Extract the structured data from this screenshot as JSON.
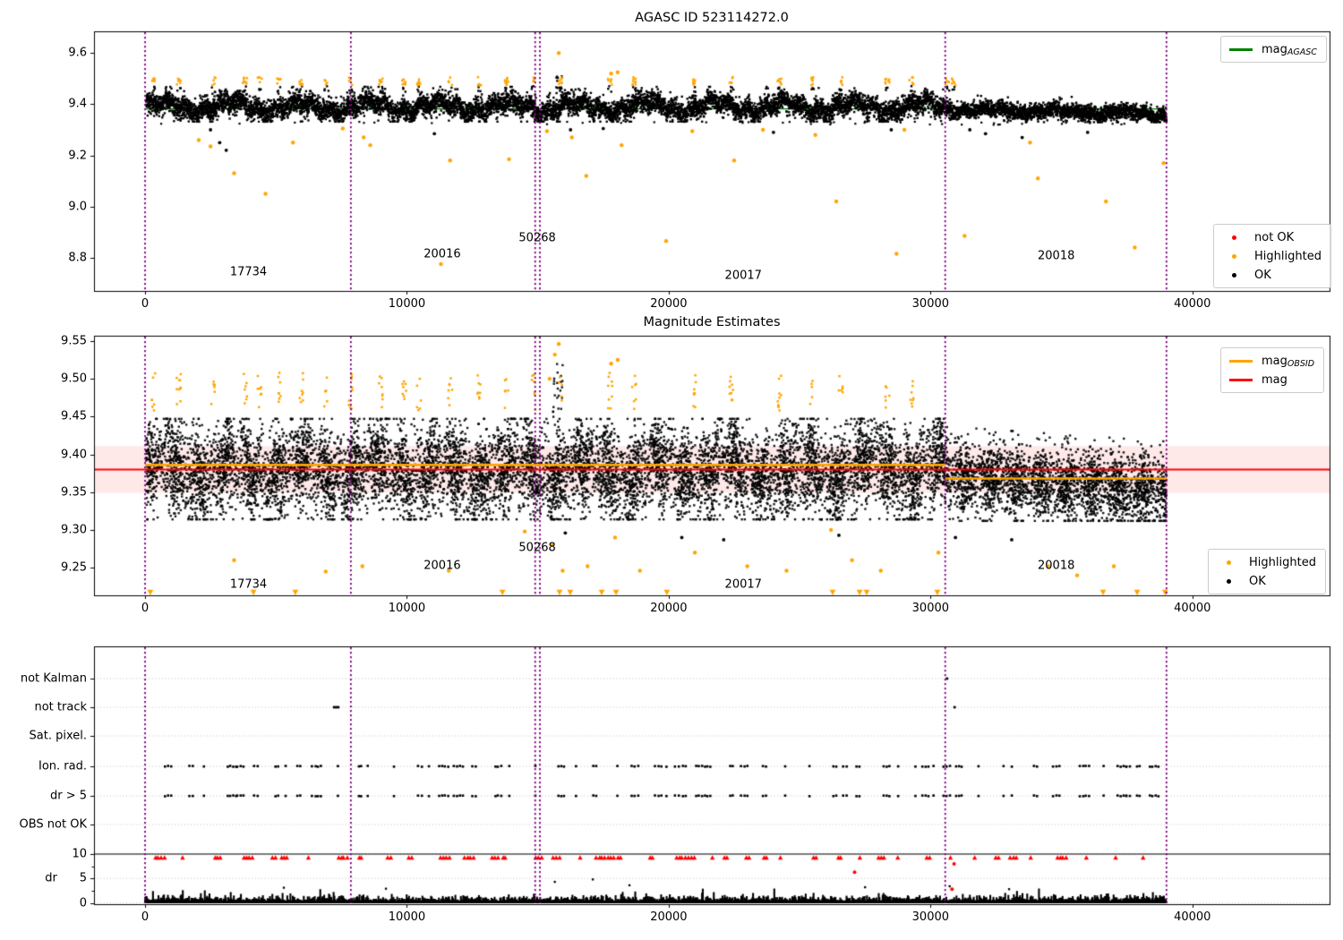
{
  "figure_title": "AGASC ID 523114272.0",
  "colors": {
    "ok": "#000000",
    "highlighted": "#ffa500",
    "not_ok": "#ff0000",
    "mag_agasc_line": "#008000",
    "mag_obsid_line": "#ffa500",
    "mag_line": "#ff0000",
    "mag_band": "rgba(255,0,0,0.09)",
    "obsid_boundary": "#800080",
    "grid": "#c0c0c0"
  },
  "chart_data": [
    {
      "type": "scatter",
      "title": "AGASC ID 523114272.0",
      "xlim": [
        -1950,
        45240
      ],
      "ylim": [
        8.67,
        9.685
      ],
      "xticks": [
        "0",
        "10000",
        "20000",
        "30000",
        "40000"
      ],
      "yticks": [
        "8.8",
        "9.0",
        "9.2",
        "9.4",
        "9.6"
      ],
      "grid": false,
      "obsid_boundaries": [
        0,
        7860,
        14900,
        15080,
        30560,
        39010
      ],
      "annotations": [
        {
          "text": "17734",
          "x": 3950,
          "y": 8.745
        },
        {
          "text": "20016",
          "x": 11350,
          "y": 8.815
        },
        {
          "text": "50268",
          "x": 14980,
          "y": 8.875
        },
        {
          "text": "20017",
          "x": 22850,
          "y": 8.73
        },
        {
          "text": "20018",
          "x": 34800,
          "y": 8.805
        }
      ],
      "mag_agasc_line": {
        "y": 9.382,
        "color": "#008000"
      },
      "series": {
        "ok_cloud": {
          "desc": "dense oscillating band of OK magnitudes",
          "x_range": [
            0,
            39010
          ],
          "mag_range": [
            9.33,
            9.47
          ],
          "center": 9.39,
          "decline_after_x": 30560,
          "decline": 0.02
        },
        "highlighted_clusters": {
          "desc": "orange clusters capping the band",
          "mag_range": [
            9.47,
            9.51
          ],
          "x_range": [
            300,
            31000
          ]
        },
        "highlighted_outliers": [
          [
            2050,
            9.26
          ],
          [
            2500,
            9.235
          ],
          [
            3400,
            9.13
          ],
          [
            4600,
            9.05
          ],
          [
            5650,
            9.25
          ],
          [
            7550,
            9.305
          ],
          [
            8350,
            9.27
          ],
          [
            8600,
            9.24
          ],
          [
            11300,
            8.775
          ],
          [
            11650,
            9.18
          ],
          [
            13900,
            9.185
          ],
          [
            15350,
            9.295
          ],
          [
            15800,
            9.6
          ],
          [
            16300,
            9.27
          ],
          [
            16850,
            9.12
          ],
          [
            17800,
            9.52
          ],
          [
            18050,
            9.525
          ],
          [
            18200,
            9.24
          ],
          [
            19900,
            8.865
          ],
          [
            20900,
            9.295
          ],
          [
            22500,
            9.18
          ],
          [
            23600,
            9.3
          ],
          [
            25600,
            9.28
          ],
          [
            26400,
            9.02
          ],
          [
            28700,
            8.815
          ],
          [
            29000,
            9.3
          ],
          [
            31300,
            8.885
          ],
          [
            33800,
            9.25
          ],
          [
            34100,
            9.11
          ],
          [
            36700,
            9.02
          ],
          [
            37800,
            8.84
          ],
          [
            38900,
            9.17
          ]
        ],
        "ok_outliers": [
          [
            2500,
            9.3
          ],
          [
            2850,
            9.25
          ],
          [
            3100,
            9.22
          ],
          [
            11050,
            9.285
          ],
          [
            16250,
            9.3
          ],
          [
            17500,
            9.305
          ],
          [
            24000,
            9.29
          ],
          [
            28500,
            9.3
          ],
          [
            31500,
            9.3
          ],
          [
            32100,
            9.285
          ],
          [
            33500,
            9.27
          ],
          [
            36000,
            9.29
          ]
        ]
      },
      "legends": [
        {
          "name": "legend-mag-agasc",
          "items": [
            {
              "type": "line",
              "color": "#008000",
              "label": "mag",
              "sub": "AGASC"
            }
          ]
        },
        {
          "name": "legend-point-types",
          "items": [
            {
              "type": "dot",
              "color": "#ff0000",
              "label": "not OK",
              "sub": ""
            },
            {
              "type": "dot",
              "color": "#ffa500",
              "label": "Highlighted",
              "sub": ""
            },
            {
              "type": "dot",
              "color": "#000000",
              "label": "OK",
              "sub": ""
            }
          ]
        }
      ]
    },
    {
      "type": "scatter",
      "title": "Magnitude Estimates",
      "xlim": [
        -1950,
        45240
      ],
      "ylim": [
        9.2135,
        9.557
      ],
      "xticks": [
        "0",
        "10000",
        "20000",
        "30000",
        "40000"
      ],
      "yticks": [
        "9.25",
        "9.30",
        "9.35",
        "9.40",
        "9.45",
        "9.50",
        "9.55"
      ],
      "grid": false,
      "obsid_boundaries": [
        0,
        7860,
        14900,
        15080,
        30560,
        39010
      ],
      "annotations": [
        {
          "text": "17734",
          "x": 3950,
          "y": 9.228
        },
        {
          "text": "20016",
          "x": 11350,
          "y": 9.252
        },
        {
          "text": "50268",
          "x": 14980,
          "y": 9.276
        },
        {
          "text": "20017",
          "x": 22850,
          "y": 9.228
        },
        {
          "text": "20018",
          "x": 34800,
          "y": 9.253
        }
      ],
      "mag_line": {
        "y": 9.38,
        "color": "#ff0000",
        "band": [
          9.349,
          9.411
        ]
      },
      "mag_obsid_segments": [
        {
          "x": [
            0,
            30560
          ],
          "y": 9.386
        },
        {
          "x": [
            30560,
            39010
          ],
          "y": 9.368
        }
      ],
      "series": {
        "ok_cloud": {
          "desc": "dense striped cloud of per-sample magnitudes",
          "x_range": [
            0,
            39010
          ],
          "mag_range": [
            9.31,
            9.45
          ],
          "center": 9.379,
          "decline_after_x": 30560,
          "decline": 0.019
        },
        "highlighted_clusters": {
          "desc": "orange clusters above cloud",
          "mag_range": [
            9.46,
            9.51
          ],
          "x_range": [
            300,
            30700
          ]
        },
        "highlighted_high": [
          [
            15800,
            9.546
          ],
          [
            15650,
            9.532
          ],
          [
            17800,
            9.52
          ],
          [
            18050,
            9.525
          ],
          [
            15450,
            9.5
          ]
        ],
        "highlighted_outliers": [
          [
            3400,
            9.26
          ],
          [
            6900,
            9.245
          ],
          [
            8300,
            9.252
          ],
          [
            11600,
            9.246
          ],
          [
            14500,
            9.298
          ],
          [
            15550,
            9.28
          ],
          [
            15950,
            9.246
          ],
          [
            16900,
            9.252
          ],
          [
            17950,
            9.29
          ],
          [
            18900,
            9.246
          ],
          [
            21000,
            9.27
          ],
          [
            23000,
            9.252
          ],
          [
            24500,
            9.246
          ],
          [
            26200,
            9.3
          ],
          [
            27000,
            9.26
          ],
          [
            28100,
            9.246
          ],
          [
            30300,
            9.27
          ],
          [
            34500,
            9.252
          ],
          [
            35600,
            9.24
          ],
          [
            37000,
            9.252
          ]
        ],
        "ok_outliers": [
          [
            16050,
            9.296
          ],
          [
            20500,
            9.29
          ],
          [
            22100,
            9.287
          ],
          [
            26500,
            9.293
          ],
          [
            30950,
            9.29
          ],
          [
            33100,
            9.287
          ]
        ],
        "clipped_below_x": [
          200,
          4140,
          5740,
          13650,
          15830,
          16240,
          17440,
          17990,
          19930,
          26260,
          27290,
          27560,
          30260,
          36590,
          37890,
          38960
        ]
      },
      "legends": [
        {
          "name": "legend-mag-lines",
          "items": [
            {
              "type": "line",
              "color": "#ffa500",
              "label": "mag",
              "sub": "OBSID"
            },
            {
              "type": "line",
              "color": "#ff0000",
              "label": "mag",
              "sub": ""
            }
          ]
        },
        {
          "name": "legend-point-types",
          "items": [
            {
              "type": "dot",
              "color": "#ffa500",
              "label": "Highlighted",
              "sub": ""
            },
            {
              "type": "dot",
              "color": "#000000",
              "label": "OK",
              "sub": ""
            }
          ]
        }
      ]
    },
    {
      "type": "flags",
      "title": "",
      "xlim": [
        -1950,
        45240
      ],
      "xticks": [
        "0",
        "10000",
        "20000",
        "30000",
        "40000"
      ],
      "rows": [
        "not Kalman",
        "not track",
        "Sat. pixel.",
        "Ion. rad.",
        "dr > 5",
        "OBS not OK"
      ],
      "dr_axis": {
        "label": "dr",
        "ticks": [
          "10",
          "5",
          "0"
        ],
        "limit_line": 10
      },
      "obsid_boundaries": [
        0,
        7860,
        14900,
        15080,
        30560,
        39010
      ],
      "flags_data": {
        "not_kalman_x": [
          30630
        ],
        "not_track_x": [
          7220,
          7300,
          7380,
          30920
        ],
        "sat_pixel_x": [],
        "obs_not_ok_x": [],
        "ion_rad_clusters": {
          "x_start": 500,
          "x_end": 38800,
          "spacing_min": 260,
          "spacing_max": 1020,
          "note": "same x pattern repeated on dr > 5 row"
        },
        "dr10_red_clusters": {
          "x_start": 250,
          "x_end": 38900,
          "spacing_min": 300,
          "spacing_max": 1300,
          "dr": 10,
          "note": "dr values clipped at 10"
        },
        "dr_red_outliers": [
          [
            27100,
            6.3
          ],
          [
            30900,
            8.0
          ],
          [
            30820,
            2.8
          ]
        ],
        "dr_noise": {
          "x_range": [
            0,
            39010
          ],
          "dr_typical": [
            0,
            1.5
          ]
        },
        "dr_black_spikes": [
          [
            5300,
            3.1
          ],
          [
            9200,
            2.9
          ],
          [
            15650,
            4.3
          ],
          [
            17100,
            4.8
          ],
          [
            18500,
            3.6
          ],
          [
            27500,
            3.2
          ],
          [
            30730,
            3.4
          ],
          [
            33000,
            2.8
          ]
        ]
      }
    }
  ]
}
